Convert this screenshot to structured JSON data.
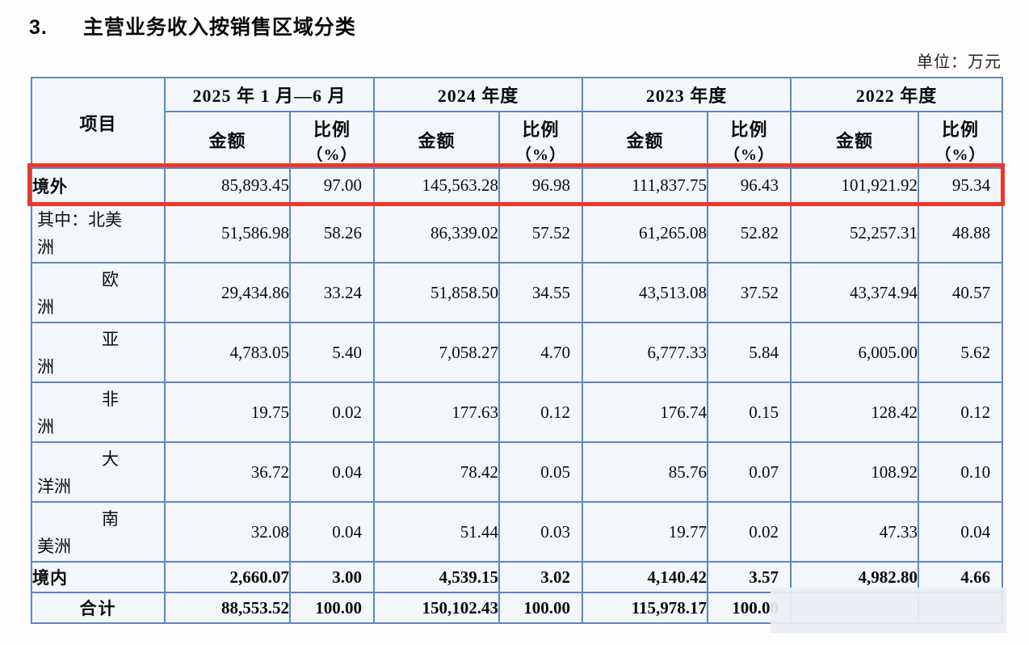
{
  "page": {
    "title_number": "3.",
    "title": "主营业务收入按销售区域分类",
    "unit_label": "单位：万元"
  },
  "table": {
    "item_header": "项目",
    "amount_header": "金额",
    "ratio_header": "比例",
    "ratio_unit": "（%）",
    "period_groups": [
      "2025 年 1 月—6 月",
      "2024 年度",
      "2023 年度",
      "2022 年度"
    ],
    "rows": [
      {
        "id": "overseas",
        "kind": "highlight",
        "label_lines": [
          "境外"
        ],
        "values": [
          "85,893.45",
          "97.00",
          "145,563.28",
          "96.98",
          "111,837.75",
          "96.43",
          "101,921.92",
          "95.34"
        ]
      },
      {
        "id": "north-america",
        "kind": "sub",
        "label_lines": [
          "其中：北美",
          "洲"
        ],
        "values": [
          "51,586.98",
          "58.26",
          "86,339.02",
          "57.52",
          "61,265.08",
          "52.82",
          "52,257.31",
          "48.88"
        ]
      },
      {
        "id": "europe",
        "kind": "sub",
        "label_lines": [
          "欧",
          "洲"
        ],
        "values": [
          "29,434.86",
          "33.24",
          "51,858.50",
          "34.55",
          "43,513.08",
          "37.52",
          "43,374.94",
          "40.57"
        ]
      },
      {
        "id": "asia",
        "kind": "sub",
        "label_lines": [
          "亚",
          "洲"
        ],
        "values": [
          "4,783.05",
          "5.40",
          "7,058.27",
          "4.70",
          "6,777.33",
          "5.84",
          "6,005.00",
          "5.62"
        ]
      },
      {
        "id": "africa",
        "kind": "sub",
        "label_lines": [
          "非",
          "洲"
        ],
        "values": [
          "19.75",
          "0.02",
          "177.63",
          "0.12",
          "176.74",
          "0.15",
          "128.42",
          "0.12"
        ]
      },
      {
        "id": "oceania",
        "kind": "sub",
        "label_lines": [
          "大",
          "洋洲"
        ],
        "values": [
          "36.72",
          "0.04",
          "78.42",
          "0.05",
          "85.76",
          "0.07",
          "108.92",
          "0.10"
        ]
      },
      {
        "id": "south-america",
        "kind": "sub",
        "label_lines": [
          "南",
          "美洲"
        ],
        "values": [
          "32.08",
          "0.04",
          "51.44",
          "0.03",
          "19.77",
          "0.02",
          "47.33",
          "0.04"
        ]
      },
      {
        "id": "domestic",
        "kind": "emph",
        "label_lines": [
          "境内"
        ],
        "values": [
          "2,660.07",
          "3.00",
          "4,539.15",
          "3.02",
          "4,140.42",
          "3.57",
          "4,982.80",
          "4.66"
        ]
      },
      {
        "id": "total",
        "kind": "total",
        "label_lines": [
          "合计"
        ],
        "values": [
          "88,553.52",
          "100.00",
          "150,102.43",
          "100.00",
          "115,978.17",
          "100.00",
          "",
          ""
        ]
      }
    ]
  }
}
